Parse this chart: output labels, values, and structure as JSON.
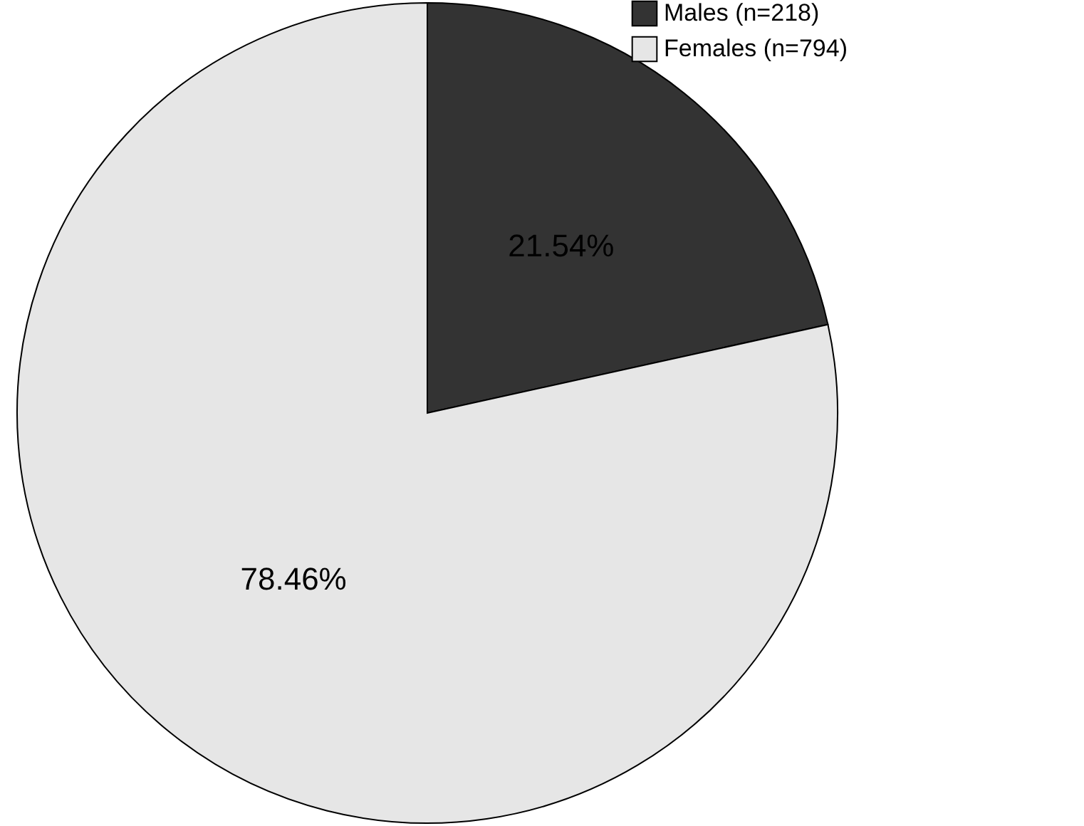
{
  "chart_data": {
    "type": "pie",
    "categories": [
      "Males (n=218)",
      "Females (n=794)"
    ],
    "values": [
      21.54,
      78.46
    ],
    "colors": [
      "#333333",
      "#e6e6e6"
    ],
    "value_labels": [
      "21.54%",
      "78.46%"
    ],
    "legend": "top right"
  }
}
